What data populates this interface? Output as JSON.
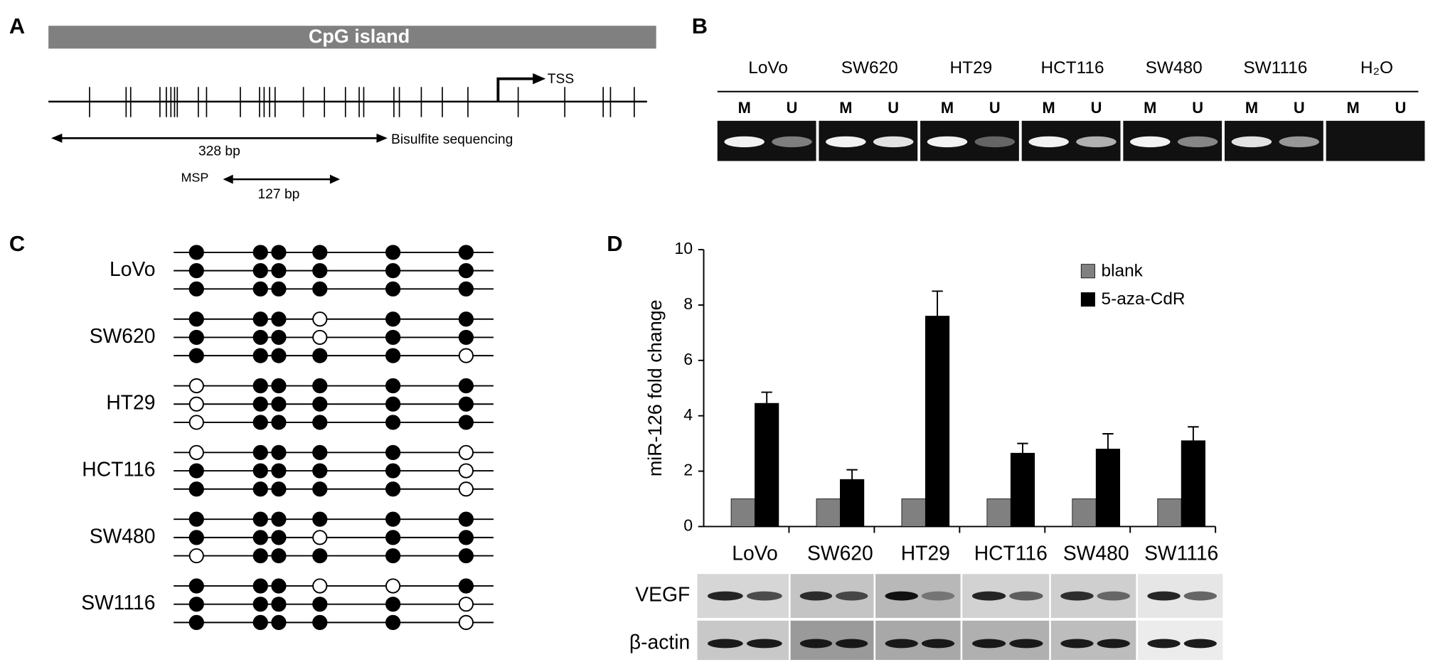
{
  "panel_a": {
    "label": "A",
    "island": "CpG island",
    "tss": "TSS",
    "bisulfite_length": "328 bp",
    "bisulfite_label": "Bisulfite sequencing",
    "msp_label": "MSP",
    "msp_length": "127 bp"
  },
  "panel_b": {
    "label": "B",
    "samples": [
      "LoVo",
      "SW620",
      "HT29",
      "HCT116",
      "SW480",
      "SW1116",
      "H₂O"
    ],
    "lanes": [
      "M",
      "U"
    ]
  },
  "panel_c": {
    "label": "C",
    "samples": [
      {
        "name": "LoVo",
        "clones": [
          [
            1,
            1,
            1,
            1,
            1,
            1
          ],
          [
            1,
            1,
            1,
            1,
            1,
            1
          ],
          [
            1,
            1,
            1,
            1,
            1,
            1
          ]
        ]
      },
      {
        "name": "SW620",
        "clones": [
          [
            1,
            1,
            1,
            0,
            1,
            1
          ],
          [
            1,
            1,
            1,
            0,
            1,
            1
          ],
          [
            1,
            1,
            1,
            1,
            1,
            0
          ]
        ]
      },
      {
        "name": "HT29",
        "clones": [
          [
            0,
            1,
            1,
            1,
            1,
            1
          ],
          [
            0,
            1,
            1,
            1,
            1,
            1
          ],
          [
            0,
            1,
            1,
            1,
            1,
            1
          ]
        ]
      },
      {
        "name": "HCT116",
        "clones": [
          [
            0,
            1,
            1,
            1,
            1,
            0
          ],
          [
            1,
            1,
            1,
            1,
            1,
            0
          ],
          [
            1,
            1,
            1,
            1,
            1,
            0
          ]
        ]
      },
      {
        "name": "SW480",
        "clones": [
          [
            1,
            1,
            1,
            1,
            1,
            1
          ],
          [
            1,
            1,
            1,
            0,
            1,
            1
          ],
          [
            0,
            1,
            1,
            1,
            1,
            1
          ]
        ]
      },
      {
        "name": "SW1116",
        "clones": [
          [
            1,
            1,
            1,
            0,
            0,
            1
          ],
          [
            1,
            1,
            1,
            1,
            1,
            0
          ],
          [
            1,
            1,
            1,
            1,
            1,
            0
          ]
        ]
      }
    ]
  },
  "panel_d": {
    "label": "D",
    "blot_rows": [
      "VEGF",
      "β-actin"
    ]
  },
  "chart_data": {
    "type": "bar",
    "y_label": "miR-126 fold change",
    "categories": [
      "LoVo",
      "SW620",
      "HT29",
      "HCT116",
      "SW480",
      "SW1116"
    ],
    "series": [
      {
        "name": "blank",
        "color": "#808080",
        "values": [
          1,
          1,
          1,
          1,
          1,
          1
        ]
      },
      {
        "name": "5-aza-CdR",
        "color": "#000000",
        "values": [
          4.45,
          1.7,
          7.6,
          2.65,
          2.8,
          3.1
        ],
        "errors": [
          0.4,
          0.35,
          0.9,
          0.35,
          0.55,
          0.5
        ]
      }
    ],
    "ylim": [
      0,
      10
    ],
    "yticks": [
      0,
      2,
      4,
      6,
      8,
      10
    ],
    "legend": "upper-right"
  }
}
